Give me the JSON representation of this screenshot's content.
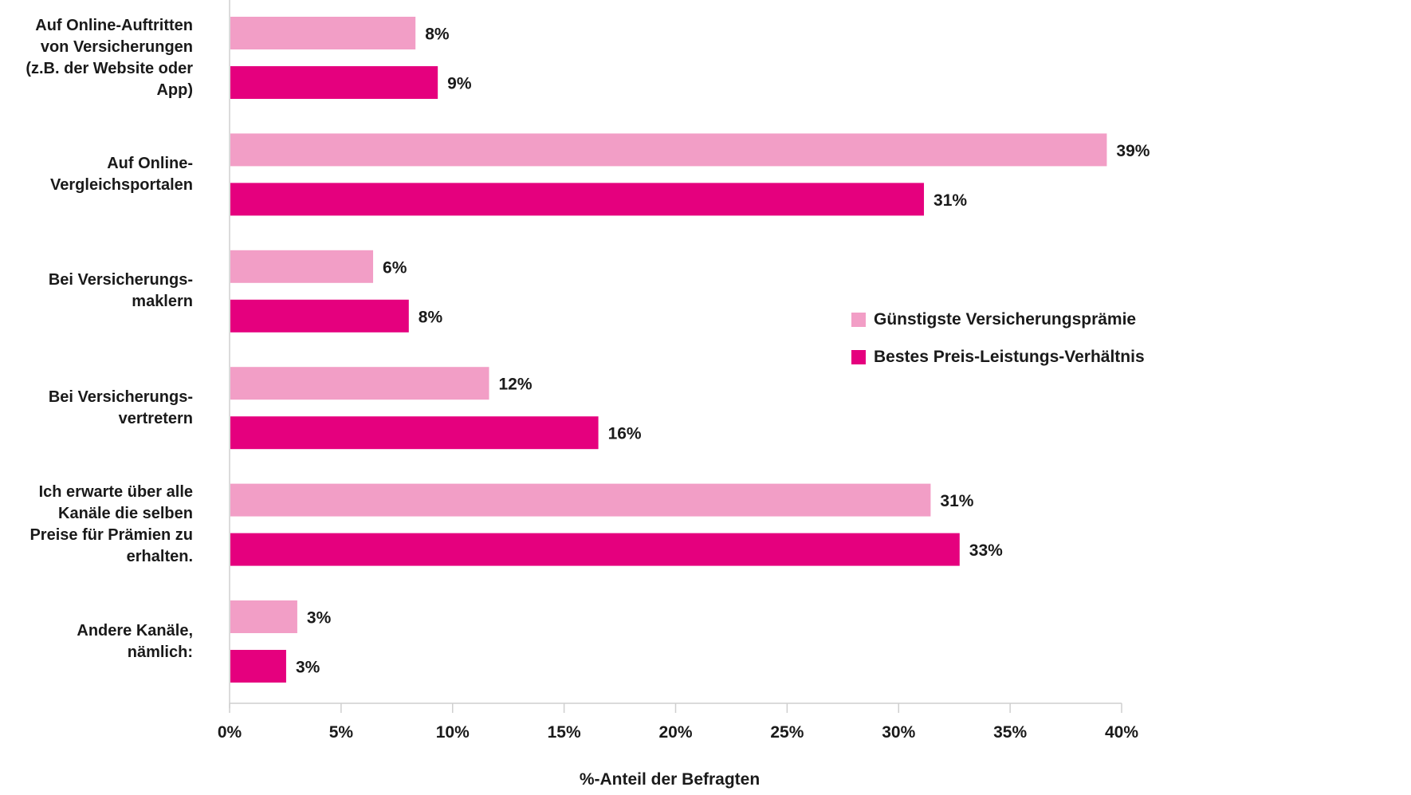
{
  "chart_data": {
    "type": "bar",
    "orientation": "horizontal",
    "categories": [
      "Auf Online-Auftritten\nvon Versicherungen\n(z.B. der Website oder\nApp)",
      "Auf Online-\nVergleichsportalen",
      "Bei Versicherungs-\nmaklern",
      "Bei Versicherungs-\nvertretern",
      "Ich erwarte über alle\nKanäle die selben\nPreise für Prämien zu\nerhalten.",
      "Andere Kanäle,\nnämlich:"
    ],
    "series": [
      {
        "name": "Günstigste Versicherungsprämie",
        "color": "#f29ec6",
        "values": [
          8.3,
          39.3,
          6.4,
          11.6,
          31.4,
          3.0
        ],
        "labels": [
          "8%",
          "39%",
          "6%",
          "12%",
          "31%",
          "3%"
        ]
      },
      {
        "name": "Bestes Preis-Leistungs-Verhältnis",
        "color": "#e5007e",
        "values": [
          9.3,
          31.1,
          8.0,
          16.5,
          32.7,
          2.5
        ],
        "labels": [
          "9%",
          "31%",
          "8%",
          "16%",
          "33%",
          "3%"
        ]
      }
    ],
    "xlim": [
      0,
      40
    ],
    "xticks": [
      "0%",
      "5%",
      "10%",
      "15%",
      "20%",
      "25%",
      "30%",
      "35%",
      "40%"
    ],
    "xlabel": "%-Anteil der Befragten",
    "legend_position": "right",
    "grid": false
  }
}
